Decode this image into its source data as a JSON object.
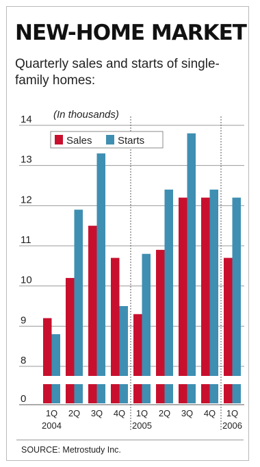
{
  "chart_data": {
    "type": "bar",
    "title": "NEW-HOME MARKET",
    "subtitle": "Quarterly sales and starts of single-family homes:",
    "unit_label": "(In thousands)",
    "categories": [
      "1Q",
      "2Q",
      "3Q",
      "4Q",
      "1Q",
      "2Q",
      "3Q",
      "4Q",
      "1Q"
    ],
    "year_labels": [
      "2004",
      "2005",
      "2006"
    ],
    "y_ticks": [
      "0",
      "8",
      "9",
      "10",
      "11",
      "12",
      "13",
      "14"
    ],
    "ylim": [
      7,
      14
    ],
    "axis_break": true,
    "series": [
      {
        "name": "Sales",
        "color": "#c8102e",
        "values": [
          9.2,
          10.2,
          11.5,
          10.7,
          9.3,
          10.9,
          12.2,
          12.2,
          10.7
        ]
      },
      {
        "name": "Starts",
        "color": "#3f8fb2",
        "values": [
          8.8,
          11.9,
          13.3,
          9.5,
          10.8,
          12.4,
          13.8,
          12.4,
          12.2
        ]
      }
    ],
    "legend": "top-left",
    "grid": true
  },
  "source": "SOURCE: Metrostudy Inc."
}
